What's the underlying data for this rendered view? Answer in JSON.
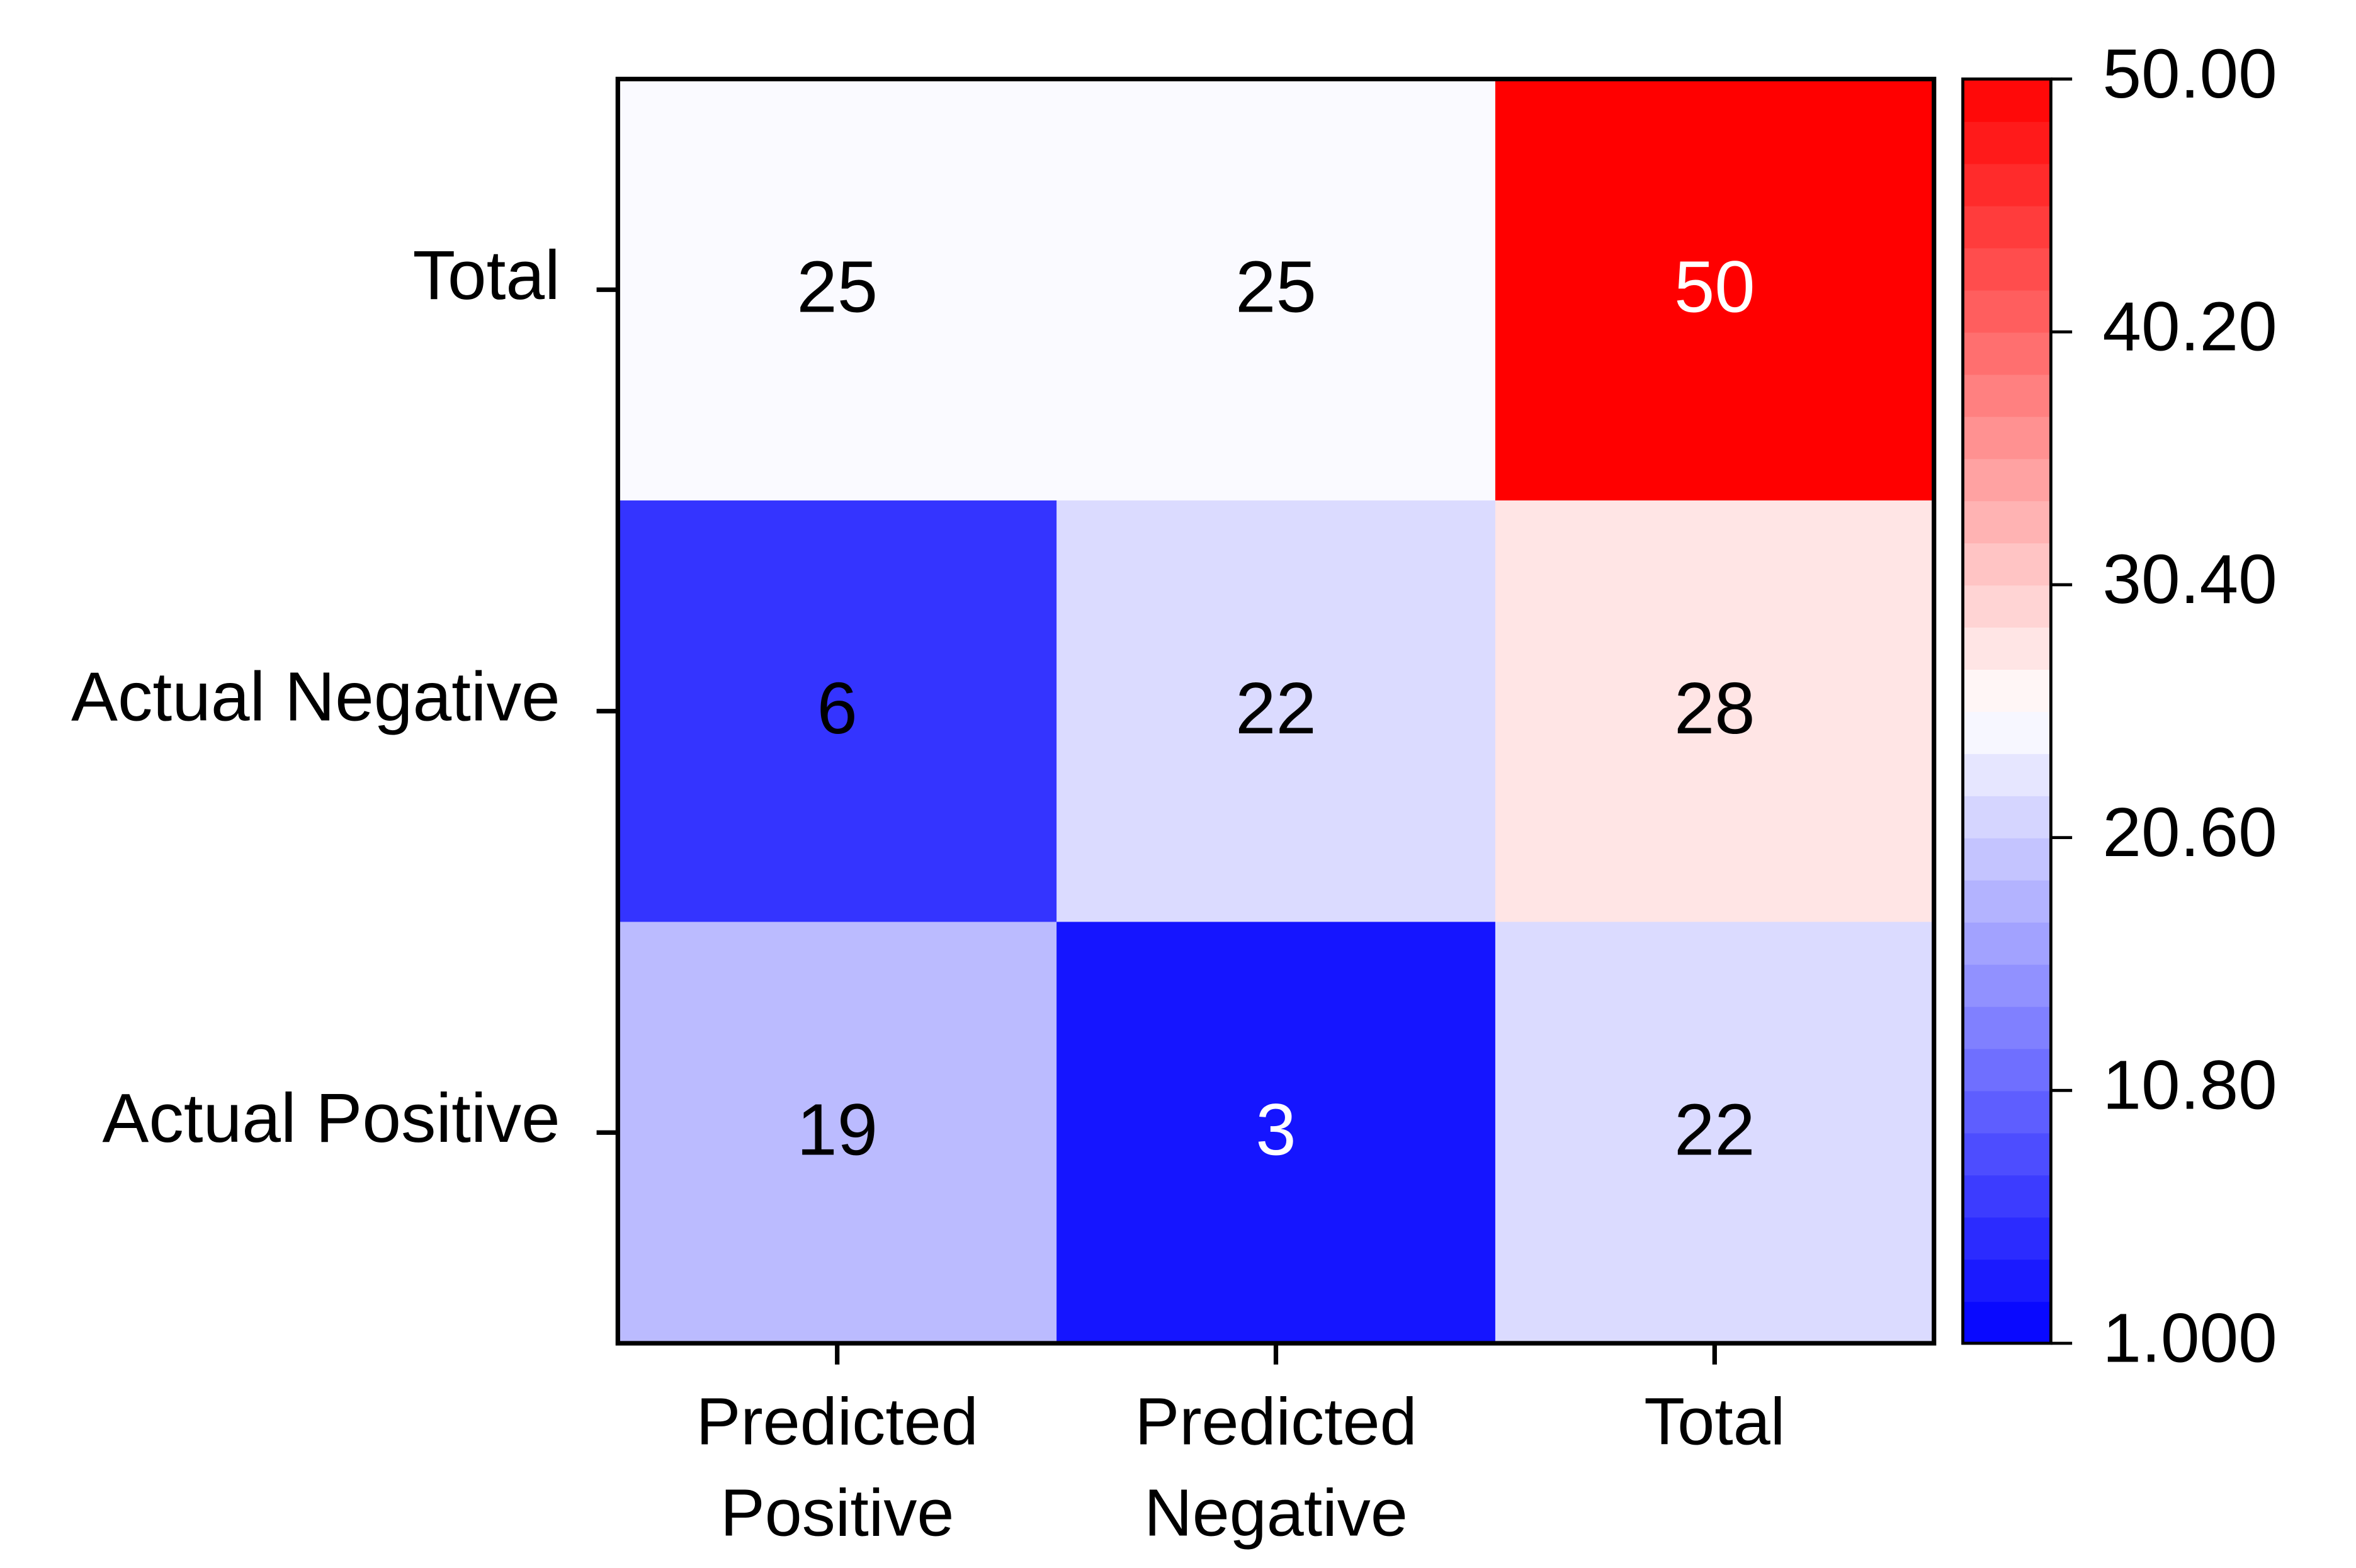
{
  "chart_data": {
    "type": "heatmap",
    "x_categories": [
      "Predicted Positive",
      "Predicted Negative",
      "Total"
    ],
    "y_categories": [
      "Total",
      "Actual Negative",
      "Actual Positive"
    ],
    "z": [
      [
        25,
        25,
        50
      ],
      [
        6,
        22,
        28
      ],
      [
        19,
        3,
        22
      ]
    ],
    "colormap": [
      "#0000ff",
      "#ffffff",
      "#ff0000"
    ],
    "clim": [
      1,
      50
    ],
    "cticks": [
      {
        "value": 1,
        "label": "1.000"
      },
      {
        "value": 10.8,
        "label": "10.80"
      },
      {
        "value": 20.6,
        "label": "20.60"
      },
      {
        "value": 30.4,
        "label": "30.40"
      },
      {
        "value": 40.2,
        "label": "40.20"
      },
      {
        "value": 50,
        "label": "50.00"
      }
    ]
  }
}
